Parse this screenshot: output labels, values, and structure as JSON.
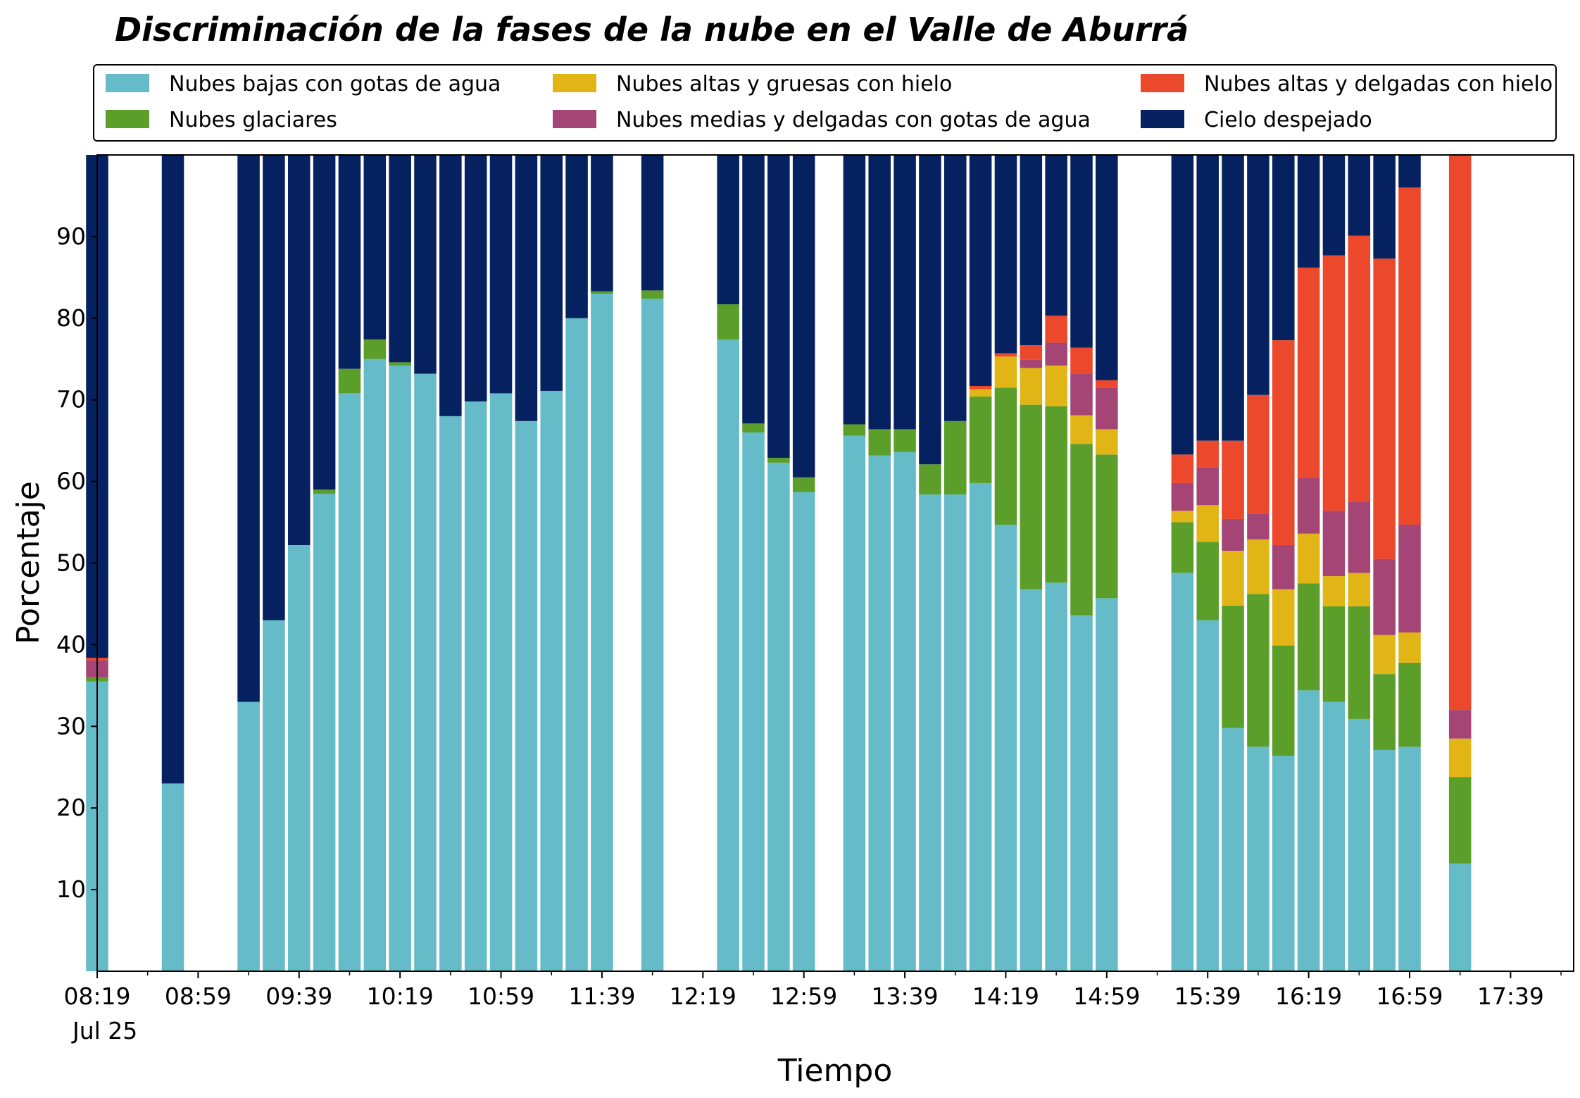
{
  "chart_data": {
    "type": "bar",
    "stacked": true,
    "title": "Discriminación de la fases de la nube en el Valle de Aburrá",
    "xlabel": "Tiempo",
    "ylabel": "Porcentaje",
    "ylim": [
      0,
      100
    ],
    "y_ticks": [
      "10",
      "20",
      "30",
      "40",
      "50",
      "60",
      "70",
      "80",
      "90"
    ],
    "x_ticks": [
      "08:19",
      "08:59",
      "09:39",
      "10:19",
      "10:59",
      "11:39",
      "12:19",
      "12:59",
      "13:39",
      "14:19",
      "14:59",
      "15:39",
      "16:19",
      "16:59",
      "17:39"
    ],
    "x_date_label": "Jul 25",
    "x_tick_minutes_start": 499,
    "x_tick_minutes_end": 1059,
    "x_tick_step": 40,
    "x_range_minutes": [
      499,
      1084
    ],
    "bar_interval_minutes": 10,
    "legend_position": "top",
    "legend_columns": 3,
    "grid": false,
    "times": [
      "08:19",
      "08:49",
      "09:19",
      "09:29",
      "09:39",
      "09:49",
      "09:59",
      "10:09",
      "10:19",
      "10:29",
      "10:39",
      "10:49",
      "10:59",
      "11:09",
      "11:19",
      "11:29",
      "11:39",
      "11:59",
      "12:29",
      "12:39",
      "12:49",
      "12:59",
      "13:19",
      "13:29",
      "13:39",
      "13:49",
      "13:59",
      "14:09",
      "14:19",
      "14:29",
      "14:39",
      "14:49",
      "14:59",
      "15:29",
      "15:39",
      "15:49",
      "15:59",
      "16:09",
      "16:19",
      "16:29",
      "16:39",
      "16:49",
      "16:59",
      "17:19"
    ],
    "series": [
      {
        "name": "Nubes bajas con gotas de agua",
        "color": "#65bcc8",
        "values": [
          35.5,
          23.0,
          33.0,
          43.0,
          52.2,
          58.5,
          70.8,
          75.0,
          74.2,
          73.2,
          68.0,
          69.8,
          70.8,
          67.4,
          71.1,
          80.0,
          83.0,
          82.4,
          77.4,
          66.0,
          62.3,
          58.7,
          65.6,
          63.2,
          63.6,
          58.4,
          58.4,
          59.8,
          54.7,
          46.8,
          47.6,
          43.6,
          45.7,
          48.8,
          43.0,
          29.8,
          27.5,
          26.4,
          34.4,
          33.0,
          30.9,
          27.1,
          27.5,
          13.2
        ]
      },
      {
        "name": "Nubes glaciares",
        "color": "#5b9e2a",
        "values": [
          0.5,
          0,
          0,
          0,
          0,
          0.5,
          3.0,
          2.4,
          0.4,
          0,
          0,
          0,
          0,
          0,
          0,
          0,
          0.3,
          1.0,
          4.3,
          1.1,
          0.6,
          1.8,
          1.4,
          3.2,
          2.8,
          3.7,
          9.0,
          10.6,
          16.8,
          22.6,
          21.6,
          21.0,
          17.6,
          6.2,
          9.6,
          15.0,
          18.7,
          13.5,
          13.1,
          11.7,
          13.8,
          9.3,
          10.3,
          10.6
        ]
      },
      {
        "name": "Nubes altas y gruesas con hielo",
        "color": "#e2b517",
        "values": [
          0,
          0,
          0,
          0,
          0,
          0,
          0,
          0,
          0,
          0,
          0,
          0,
          0,
          0,
          0,
          0,
          0,
          0,
          0,
          0,
          0,
          0,
          0,
          0,
          0,
          0,
          0,
          0.9,
          3.8,
          4.5,
          5.0,
          3.5,
          3.1,
          1.4,
          4.5,
          6.7,
          6.7,
          6.9,
          6.1,
          3.7,
          4.1,
          4.8,
          3.7,
          4.7
        ]
      },
      {
        "name": "Nubes medias y delgadas con gotas de agua",
        "color": "#a44575",
        "values": [
          2.1,
          0,
          0,
          0,
          0,
          0,
          0,
          0,
          0,
          0,
          0,
          0,
          0,
          0,
          0,
          0,
          0,
          0,
          0,
          0,
          0,
          0,
          0,
          0,
          0,
          0,
          0,
          0,
          0,
          1.0,
          2.8,
          5.1,
          5.1,
          3.4,
          4.6,
          3.9,
          3.1,
          5.4,
          6.8,
          8.0,
          8.7,
          9.3,
          13.2,
          3.5
        ]
      },
      {
        "name": "Nubes altas y delgadas con hielo",
        "color": "#eb482c",
        "values": [
          0.3,
          0,
          0,
          0,
          0,
          0,
          0,
          0,
          0,
          0,
          0,
          0,
          0,
          0,
          0,
          0,
          0,
          0,
          0,
          0,
          0,
          0,
          0,
          0,
          0,
          0,
          0,
          0.4,
          0.4,
          1.8,
          3.3,
          3.2,
          0.9,
          3.5,
          3.3,
          9.6,
          14.6,
          25.1,
          25.8,
          31.3,
          32.6,
          36.8,
          41.3,
          68.1
        ]
      },
      {
        "name": "Cielo despejado",
        "color": "#06215f",
        "values": [
          61.6,
          77.0,
          67.0,
          57.0,
          47.8,
          41.0,
          26.2,
          22.6,
          25.4,
          26.8,
          32.0,
          30.2,
          29.2,
          32.6,
          28.9,
          20.0,
          16.7,
          16.6,
          18.3,
          32.9,
          37.1,
          39.5,
          33.0,
          33.6,
          33.6,
          37.9,
          32.6,
          28.3,
          24.3,
          23.3,
          19.7,
          23.6,
          27.6,
          36.7,
          35.0,
          35.0,
          29.4,
          22.7,
          13.8,
          12.3,
          9.9,
          12.7,
          4.0,
          0.0
        ]
      }
    ]
  }
}
